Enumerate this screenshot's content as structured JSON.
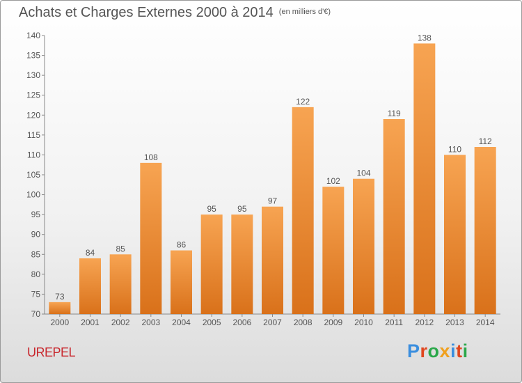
{
  "title": "Achats et Charges Externes 2000 à 2014",
  "unit_label": "(en milliers d'€)",
  "commune": "UREPEL",
  "logo": {
    "text": "Proxiti",
    "letter_colors": [
      "#3a8ede",
      "#e0461e",
      "#2aa84a",
      "#f0a01e",
      "#3a8ede",
      "#e0461e",
      "#2aa84a"
    ]
  },
  "colors": {
    "bar_light": "#f7a452",
    "bar_dark": "#d9711a",
    "text": "#555555",
    "commune": "#c8262c"
  },
  "chart_data": {
    "type": "bar",
    "title": "Achats et Charges Externes 2000 à 2014",
    "xlabel": "",
    "ylabel": "",
    "categories": [
      "2000",
      "2001",
      "2002",
      "2003",
      "2004",
      "2005",
      "2006",
      "2007",
      "2008",
      "2009",
      "2010",
      "2011",
      "2012",
      "2013",
      "2014"
    ],
    "values": [
      73,
      84,
      85,
      108,
      86,
      95,
      95,
      97,
      122,
      102,
      104,
      119,
      138,
      110,
      112
    ],
    "ylim": [
      70,
      140
    ],
    "yticks": [
      70,
      75,
      80,
      85,
      90,
      95,
      100,
      105,
      110,
      115,
      120,
      125,
      130,
      135,
      140
    ],
    "grid": false,
    "legend": "none",
    "data_labels": true
  }
}
